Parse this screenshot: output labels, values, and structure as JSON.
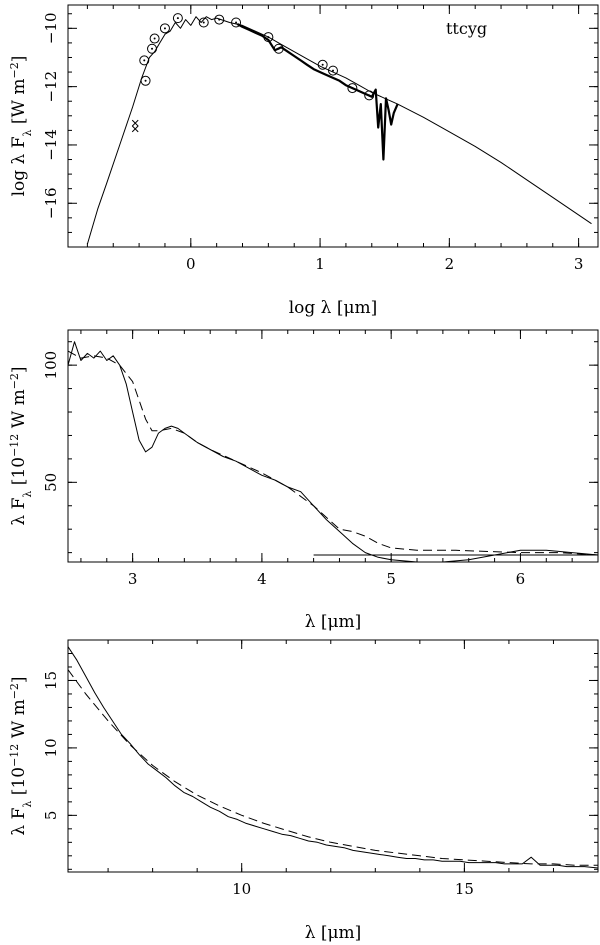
{
  "chart_data": [
    {
      "type": "line",
      "scale": "log",
      "xlabel": "log λ [μm]",
      "ylabel": "log λ F_λ [W m^-2]",
      "xlim": [
        -0.95,
        3.15
      ],
      "ylim": [
        -17.5,
        -9.2
      ],
      "xticks": [
        0,
        1,
        2,
        3
      ],
      "xtick_labels": [
        "0",
        "1",
        "2",
        "3"
      ],
      "yticks": [
        -10,
        -12,
        -14,
        -16
      ],
      "ytick_labels": [
        "−10",
        "−12",
        "−14",
        "−16"
      ],
      "annotation": "ttcyg",
      "series": [
        {
          "role": "model",
          "style": "thin",
          "x": [
            -0.8,
            -0.72,
            -0.65,
            -0.55,
            -0.45,
            -0.38,
            -0.32,
            -0.28,
            -0.24,
            -0.2,
            -0.16,
            -0.12,
            -0.08,
            -0.04,
            0.0,
            0.04,
            0.08,
            0.12,
            0.16,
            0.2,
            0.3,
            0.4,
            0.5,
            0.6,
            0.7,
            0.8,
            0.9,
            1.0,
            1.1,
            1.2,
            1.3,
            1.4,
            1.5,
            1.6,
            1.8,
            2.0,
            2.2,
            2.4,
            2.6,
            2.8,
            3.0,
            3.1
          ],
          "y": [
            -17.4,
            -16.2,
            -15.3,
            -14.0,
            -12.7,
            -11.7,
            -11.0,
            -10.8,
            -10.5,
            -10.2,
            -10.1,
            -9.8,
            -10.0,
            -9.7,
            -9.9,
            -9.6,
            -9.8,
            -9.6,
            -9.7,
            -9.65,
            -9.8,
            -9.9,
            -10.1,
            -10.3,
            -10.55,
            -10.8,
            -11.05,
            -11.3,
            -11.5,
            -11.7,
            -11.95,
            -12.2,
            -12.4,
            -12.6,
            -13.05,
            -13.55,
            -14.05,
            -14.6,
            -15.2,
            -15.8,
            -16.4,
            -16.7
          ]
        },
        {
          "role": "iso-spectrum",
          "style": "thick",
          "x": [
            0.36,
            0.4,
            0.45,
            0.5,
            0.55,
            0.6,
            0.65,
            0.7,
            0.75,
            0.8,
            0.85,
            0.9,
            0.95,
            1.0,
            1.05,
            1.1,
            1.15,
            1.2,
            1.25,
            1.3,
            1.35,
            1.4,
            1.43,
            1.45,
            1.47,
            1.49,
            1.51,
            1.53,
            1.55,
            1.57,
            1.6
          ],
          "y": [
            -9.85,
            -9.95,
            -10.05,
            -10.15,
            -10.25,
            -10.4,
            -10.75,
            -10.65,
            -10.8,
            -10.95,
            -11.1,
            -11.25,
            -11.4,
            -11.5,
            -11.6,
            -11.7,
            -11.8,
            -11.95,
            -12.05,
            -12.15,
            -12.25,
            -12.35,
            -12.1,
            -13.4,
            -12.6,
            -14.5,
            -12.4,
            -12.8,
            -13.3,
            -12.9,
            -12.6
          ]
        }
      ],
      "photometry": [
        {
          "x": -0.36,
          "y": -11.1
        },
        {
          "x": -0.35,
          "y": -11.8
        },
        {
          "x": -0.3,
          "y": -10.7
        },
        {
          "x": -0.28,
          "y": -10.35
        },
        {
          "x": -0.2,
          "y": -10.0
        },
        {
          "x": -0.1,
          "y": -9.65
        },
        {
          "x": 0.1,
          "y": -9.8
        },
        {
          "x": 0.22,
          "y": -9.7
        },
        {
          "x": 0.35,
          "y": -9.8
        },
        {
          "x": 0.6,
          "y": -10.3
        },
        {
          "x": 0.68,
          "y": -10.7
        },
        {
          "x": 1.02,
          "y": -11.25
        },
        {
          "x": 1.1,
          "y": -11.45
        },
        {
          "x": 1.25,
          "y": -12.05
        },
        {
          "x": 1.38,
          "y": -12.3
        }
      ],
      "iras_upper_limits": [
        {
          "x": -0.43,
          "y": -13.25
        },
        {
          "x": -0.43,
          "y": -13.45
        }
      ]
    },
    {
      "type": "line",
      "xlabel": "λ [μm]",
      "ylabel": "λ F_λ [10^-12 W m^-2]",
      "xlim": [
        2.5,
        6.6
      ],
      "ylim": [
        16,
        115
      ],
      "xticks": [
        3,
        4,
        5,
        6
      ],
      "xtick_labels": [
        "3",
        "4",
        "5",
        "6"
      ],
      "yticks": [
        50,
        100
      ],
      "ytick_labels": [
        "50",
        "100"
      ],
      "series": [
        {
          "role": "observed",
          "style": "solid",
          "x": [
            2.5,
            2.55,
            2.6,
            2.65,
            2.7,
            2.75,
            2.8,
            2.85,
            2.9,
            2.95,
            3.0,
            3.05,
            3.1,
            3.15,
            3.2,
            3.25,
            3.3,
            3.35,
            3.4,
            3.5,
            3.6,
            3.7,
            3.8,
            3.9,
            4.0,
            4.1,
            4.2,
            4.3,
            4.4,
            4.5,
            4.6,
            4.7,
            4.8,
            4.9,
            5.0,
            5.2,
            5.4,
            5.6,
            5.8,
            6.0,
            6.2,
            6.4,
            6.6
          ],
          "y": [
            100,
            110,
            102,
            105,
            103,
            106,
            102,
            104,
            100,
            92,
            80,
            68,
            63,
            65,
            71,
            73,
            74,
            73,
            71,
            67,
            64,
            61,
            59,
            56,
            53,
            51,
            48,
            46,
            40,
            34,
            29,
            24,
            20,
            18,
            17,
            16,
            16,
            17,
            19,
            21,
            21,
            20,
            19
          ]
        },
        {
          "role": "model",
          "style": "dashed",
          "x": [
            2.5,
            2.6,
            2.7,
            2.8,
            2.9,
            3.0,
            3.05,
            3.1,
            3.15,
            3.2,
            3.3,
            3.4,
            3.5,
            3.6,
            3.8,
            4.0,
            4.2,
            4.4,
            4.5,
            4.6,
            4.7,
            4.8,
            4.9,
            5.0,
            5.2,
            5.5,
            6.0,
            6.3,
            6.6
          ],
          "y": [
            106,
            103,
            104,
            103,
            100,
            93,
            85,
            77,
            72,
            72,
            73,
            71,
            67,
            64,
            59,
            54,
            48,
            40,
            35,
            30,
            29,
            27,
            24,
            22,
            21,
            21,
            20,
            20,
            19
          ]
        },
        {
          "role": "baseline",
          "style": "solid",
          "x": [
            4.4,
            6.6
          ],
          "y": [
            19,
            19
          ]
        }
      ]
    },
    {
      "type": "line",
      "xlabel": "λ [μm]",
      "ylabel": "λ F_λ [10^-12 W m^-2]",
      "xlim": [
        6.1,
        18
      ],
      "ylim": [
        0.8,
        18
      ],
      "xticks": [
        10,
        15
      ],
      "xtick_labels": [
        "10",
        "15"
      ],
      "yticks": [
        5,
        10,
        15
      ],
      "ytick_labels": [
        "5",
        "10",
        "15"
      ],
      "series": [
        {
          "role": "observed",
          "style": "solid",
          "x": [
            6.1,
            6.3,
            6.5,
            6.7,
            6.9,
            7.1,
            7.3,
            7.5,
            7.7,
            7.9,
            8.1,
            8.3,
            8.5,
            8.7,
            8.9,
            9.1,
            9.3,
            9.5,
            9.7,
            9.9,
            10.1,
            10.3,
            10.5,
            10.7,
            10.9,
            11.1,
            11.3,
            11.5,
            11.7,
            11.9,
            12.1,
            12.3,
            12.5,
            12.7,
            12.9,
            13.1,
            13.3,
            13.5,
            13.7,
            13.9,
            14.1,
            14.3,
            14.5,
            14.7,
            14.9,
            15.1,
            15.3,
            15.5,
            15.7,
            15.9,
            16.1,
            16.3,
            16.5,
            16.7,
            16.9,
            17.1,
            17.3,
            17.5,
            17.7,
            18.0
          ],
          "y": [
            17.5,
            16.5,
            15.3,
            14.1,
            13.0,
            12.0,
            11.0,
            10.3,
            9.5,
            8.8,
            8.3,
            7.8,
            7.2,
            6.7,
            6.4,
            6.0,
            5.6,
            5.3,
            4.9,
            4.7,
            4.4,
            4.2,
            4.0,
            3.8,
            3.6,
            3.5,
            3.3,
            3.1,
            3.0,
            2.8,
            2.7,
            2.6,
            2.4,
            2.3,
            2.2,
            2.1,
            2.0,
            1.9,
            1.8,
            1.8,
            1.7,
            1.7,
            1.6,
            1.6,
            1.6,
            1.5,
            1.5,
            1.5,
            1.5,
            1.4,
            1.4,
            1.4,
            1.9,
            1.3,
            1.3,
            1.3,
            1.2,
            1.2,
            1.2,
            1.1
          ]
        },
        {
          "role": "model",
          "style": "dashed",
          "x": [
            6.1,
            6.5,
            7.0,
            7.5,
            8.0,
            8.5,
            9.0,
            9.5,
            10.0,
            10.5,
            11.0,
            11.5,
            12.0,
            12.5,
            13.0,
            13.5,
            14.0,
            14.5,
            15.0,
            15.5,
            16.0,
            16.5,
            17.0,
            17.5,
            18.0
          ],
          "y": [
            15.8,
            14.0,
            12.0,
            10.2,
            8.7,
            7.5,
            6.5,
            5.7,
            5.0,
            4.4,
            3.9,
            3.4,
            3.0,
            2.7,
            2.4,
            2.2,
            2.0,
            1.8,
            1.7,
            1.6,
            1.5,
            1.4,
            1.4,
            1.3,
            1.3
          ]
        }
      ]
    }
  ]
}
